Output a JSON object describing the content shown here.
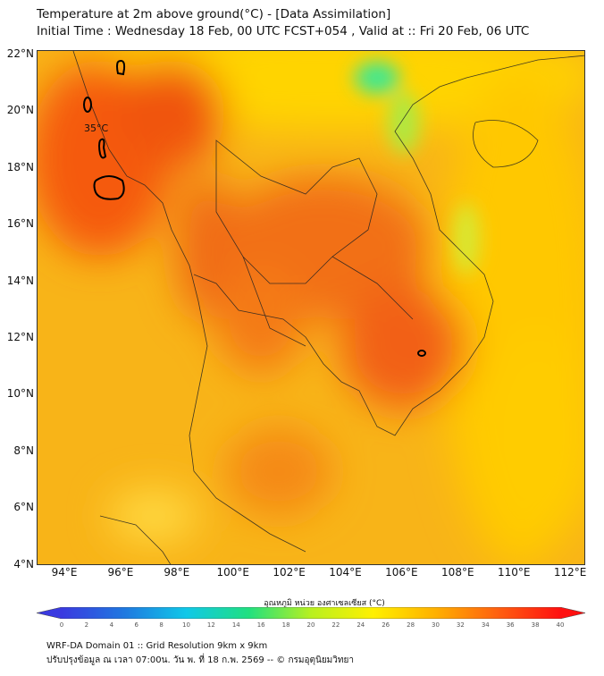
{
  "header": {
    "title": "Temperature at 2m above ground(°C) - [Data Assimilation]",
    "subtitle": "Initial Time : Wednesday 18 Feb, 00 UTC FCST+054 , Valid at :: Fri 20 Feb, 06 UTC"
  },
  "map": {
    "lat_labels": [
      "22°N",
      "20°N",
      "18°N",
      "16°N",
      "14°N",
      "12°N",
      "10°N",
      "8°N",
      "6°N",
      "4°N"
    ],
    "lon_labels": [
      "94°E",
      "96°E",
      "98°E",
      "100°E",
      "102°E",
      "104°E",
      "106°E",
      "108°E",
      "110°E",
      "112°E"
    ],
    "contour_label": "35°C",
    "extent": {
      "lon": [
        93,
        112.5
      ],
      "lat": [
        4,
        22.1
      ]
    }
  },
  "colorbar": {
    "title": "อุณหภูมิ หน่วย องศาเซลเซียส (°C)",
    "ticks": [
      "0",
      "2",
      "4",
      "6",
      "8",
      "10",
      "12",
      "14",
      "16",
      "18",
      "20",
      "22",
      "24",
      "26",
      "28",
      "30",
      "32",
      "34",
      "36",
      "38",
      "40"
    ],
    "range": [
      0,
      40
    ],
    "colors": [
      "#3a3ae0",
      "#1f78e0",
      "#10c8e8",
      "#20e080",
      "#b8f020",
      "#fff000",
      "#ffb000",
      "#ff6010",
      "#ff1010"
    ]
  },
  "footer": {
    "line1": "WRF-DA Domain 01 :: Grid Resolution 9km x 9km",
    "line2": "ปรับปรุงข้อมูล ณ เวลา 07:00น. วัน พ. ที่ 18 ก.พ. 2569 -- © กรมอุตุนิยมวิทยา"
  }
}
